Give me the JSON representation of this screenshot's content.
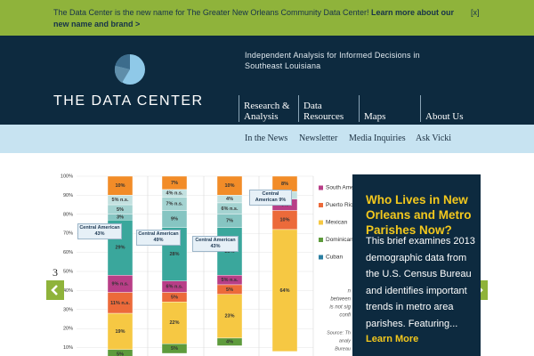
{
  "banner": {
    "text": "The Data Center is the new name for The Greater New Orleans Community Data Center!",
    "link": "Learn more about our new name and brand >",
    "close": "[x]"
  },
  "header": {
    "logo_text": "THE DATA CENTER",
    "tagline": "Independent Analysis for Informed Decisions in Southeast Louisiana",
    "nav": [
      "Research & Analysis",
      "Data Resources",
      "Maps",
      "About Us"
    ]
  },
  "subnav": [
    "In the News",
    "Newsletter",
    "Media Inquiries",
    "Ask Vicki"
  ],
  "slide": {
    "number": "3",
    "chart": {
      "type": "bar",
      "ylim": [
        0,
        100
      ],
      "yticks": [
        {
          "value": 10,
          "label": "10%"
        },
        {
          "value": 20,
          "label": "20%"
        },
        {
          "value": 30,
          "label": "30%"
        },
        {
          "value": 40,
          "label": "40%"
        },
        {
          "value": 50,
          "label": "50%"
        },
        {
          "value": 60,
          "label": "60%"
        },
        {
          "value": 70,
          "label": "70%"
        },
        {
          "value": 80,
          "label": "80%"
        },
        {
          "value": 90,
          "label": "90%"
        },
        {
          "value": 100,
          "label": "100%"
        }
      ],
      "bars": [
        {
          "values": [
            10,
            5,
            5,
            3,
            29,
            9,
            11,
            19,
            5
          ],
          "value_labels": [
            "10%",
            "5% n.s.",
            "5%",
            "3%",
            "29%",
            "9% n.s.",
            "11% n.s.",
            "19%",
            "5%"
          ],
          "colors": [
            "#f28c28",
            "#c3e1e0",
            "#a4d3d1",
            "#86c5c2",
            "#3aa79c",
            "#b83e87",
            "#ec6a3a",
            "#f6c843",
            "#5e9b3c"
          ]
        },
        {
          "values": [
            7,
            4,
            7,
            9,
            28,
            6,
            5,
            22,
            5
          ],
          "value_labels": [
            "7%",
            "4% n.s.",
            "7% n.s.",
            "9%",
            "28%",
            "6% n.s.",
            "5%",
            "22%",
            "5%"
          ],
          "colors": [
            "#f28c28",
            "#c3e1e0",
            "#a4d3d1",
            "#86c5c2",
            "#3aa79c",
            "#b83e87",
            "#ec6a3a",
            "#f6c843",
            "#5e9b3c"
          ]
        },
        {
          "values": [
            10,
            4,
            6,
            7,
            25,
            5,
            5,
            23,
            4
          ],
          "value_labels": [
            "10%",
            "4%",
            "6% n.s.",
            "7%",
            "25%",
            "5% n.s.",
            "5%",
            "23%",
            "4%"
          ],
          "colors": [
            "#f28c28",
            "#c3e1e0",
            "#a4d3d1",
            "#86c5c2",
            "#3aa79c",
            "#b83e87",
            "#ec6a3a",
            "#f6c843",
            "#5e9b3c"
          ]
        },
        {
          "values": [
            8,
            4,
            6,
            10,
            64
          ],
          "value_labels": [
            "8%",
            "4%",
            "6%",
            "10%",
            "64%"
          ],
          "colors": [
            "#f28c28",
            "#c3e1e0",
            "#b83e87",
            "#ec6a3a",
            "#f6c843"
          ]
        }
      ],
      "annotations": [
        "Central American 43%",
        "Central American 49%",
        "Central American 43%",
        "Central American 9%"
      ],
      "legend": [
        {
          "name": "South American",
          "color": "#b83e87"
        },
        {
          "name": "Puerto Rican",
          "color": "#ec6a3a"
        },
        {
          "name": "Mexican",
          "color": "#f6c843"
        },
        {
          "name": "Dominican",
          "color": "#5e9b3c"
        },
        {
          "name": "Cuban",
          "color": "#2b7ea1"
        }
      ],
      "note": [
        "n",
        "between",
        "is not sig",
        "confi"
      ],
      "source": [
        "Source: Th",
        "analy",
        "Bureau"
      ]
    },
    "panel": {
      "title": "Who Lives in New Orleans and Metro Parishes Now?",
      "body": "This brief examines 2013 demographic data from the U.S. Census Bureau and identifies important trends in metro area parishes. Featuring...",
      "link": "Learn More"
    }
  }
}
